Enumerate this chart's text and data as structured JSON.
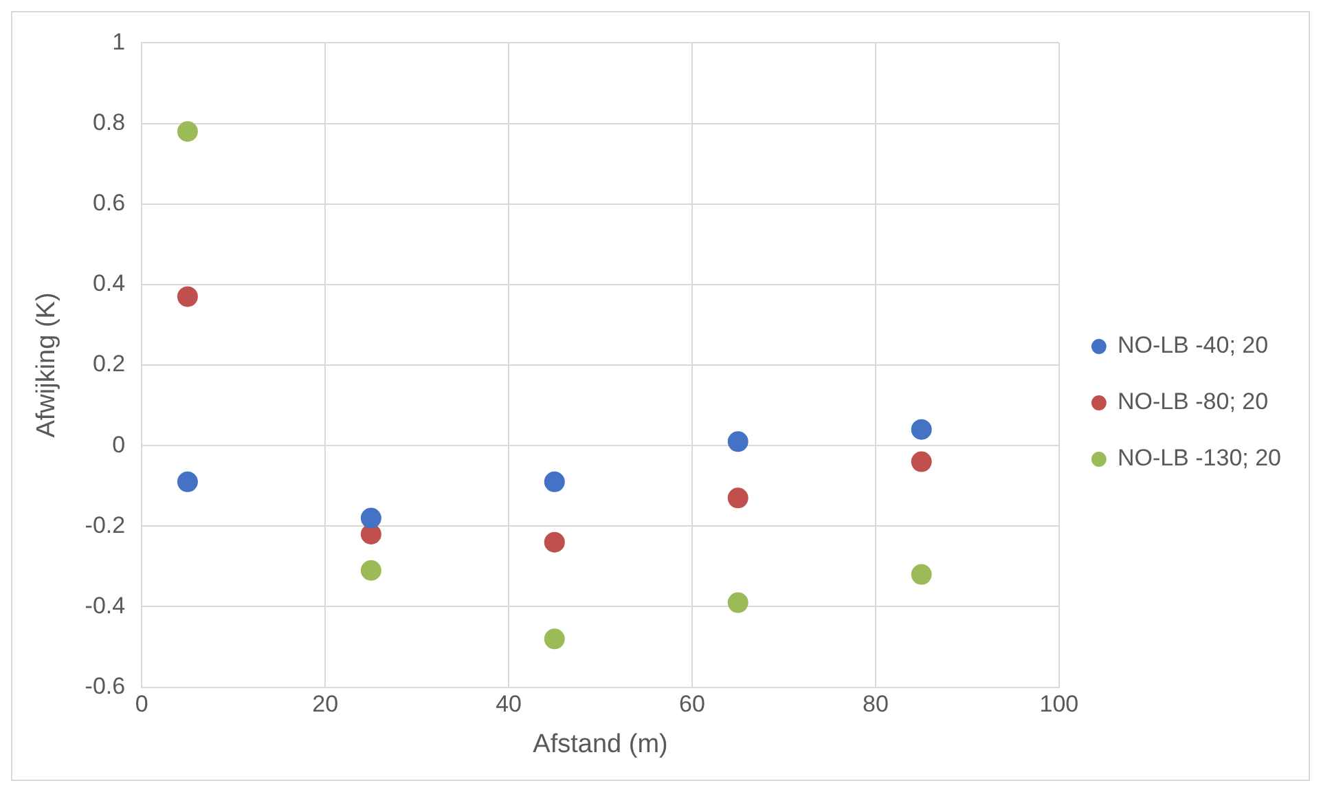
{
  "chart_data": {
    "type": "scatter",
    "xlabel": "Afstand (m)",
    "ylabel": "Afwijking (K)",
    "x": [
      5,
      25,
      45,
      65,
      85
    ],
    "series": [
      {
        "name": "NO-LB -40; 20",
        "color": "#4472c4",
        "values": [
          -0.09,
          -0.18,
          -0.09,
          0.01,
          0.04
        ]
      },
      {
        "name": "NO-LB -80; 20",
        "color": "#c0504d",
        "values": [
          0.37,
          -0.22,
          -0.24,
          -0.13,
          -0.04
        ]
      },
      {
        "name": "NO-LB -130; 20",
        "color": "#9bbb59",
        "values": [
          0.78,
          -0.31,
          -0.48,
          -0.39,
          -0.32
        ]
      }
    ],
    "xlim": [
      0,
      100
    ],
    "xticks": [
      0,
      20,
      40,
      60,
      80,
      100
    ],
    "ylim": [
      -0.6,
      1
    ],
    "yticks": [
      -0.6,
      -0.4,
      -0.2,
      0,
      0.2,
      0.4,
      0.6,
      0.8,
      1
    ],
    "grid": true,
    "legend": "right",
    "marker": "circle"
  }
}
